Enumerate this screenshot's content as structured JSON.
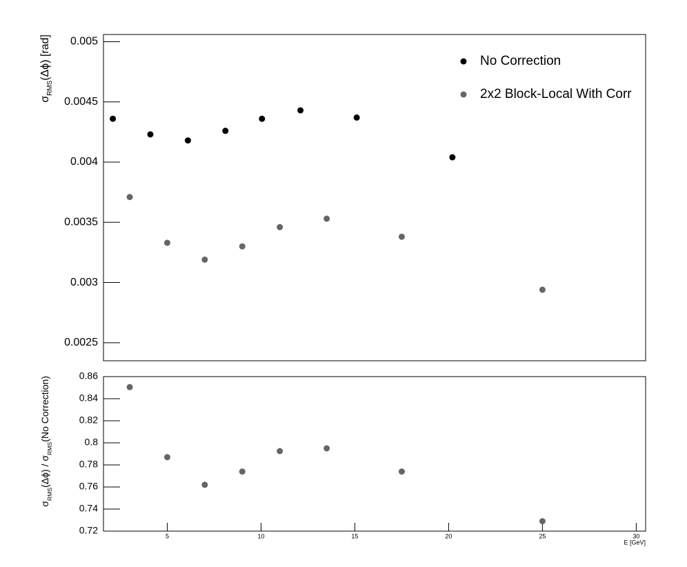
{
  "chart_data": [
    {
      "type": "scatter",
      "y_label_parts": [
        "σ",
        "RMS",
        "(Δϕ) [rad]"
      ],
      "xlim": [
        1.6,
        30.5
      ],
      "ylim": [
        0.00235,
        0.00506
      ],
      "yticks": [
        0.0025,
        0.003,
        0.0035,
        0.004,
        0.0045,
        0.005
      ],
      "legend": "top-right",
      "series": [
        {
          "name": "No Correction",
          "color": "#000000",
          "x": [
            2.1,
            4.1,
            6.1,
            8.1,
            10.05,
            12.1,
            15.1,
            20.2
          ],
          "values": [
            0.00436,
            0.00423,
            0.00418,
            0.00426,
            0.00436,
            0.00443,
            0.00437,
            0.00404
          ]
        },
        {
          "name": "2x2 Block-Local With Corr",
          "color": "#666666",
          "x": [
            3,
            5,
            7,
            9,
            11,
            13.5,
            17.5,
            25
          ],
          "values": [
            0.00371,
            0.00333,
            0.00319,
            0.0033,
            0.00346,
            0.00353,
            0.00338,
            0.00294
          ]
        }
      ]
    },
    {
      "type": "scatter",
      "y_label_parts": [
        "σ",
        "RMS",
        "(Δϕ) / σ",
        "RMS",
        "(No Correction)"
      ],
      "x_label": "E  [GeV]",
      "xlim": [
        1.6,
        30.5
      ],
      "ylim": [
        0.72,
        0.86
      ],
      "xticks": [
        5,
        10,
        15,
        20,
        25,
        30
      ],
      "yticks": [
        0.72,
        0.74,
        0.76,
        0.78,
        0.8,
        0.82,
        0.84,
        0.86
      ],
      "color": "#666666",
      "x": [
        3,
        5,
        7,
        9,
        11,
        13.5,
        17.5,
        25
      ],
      "values": [
        0.8505,
        0.787,
        0.762,
        0.774,
        0.7925,
        0.795,
        0.774,
        0.729
      ]
    }
  ]
}
